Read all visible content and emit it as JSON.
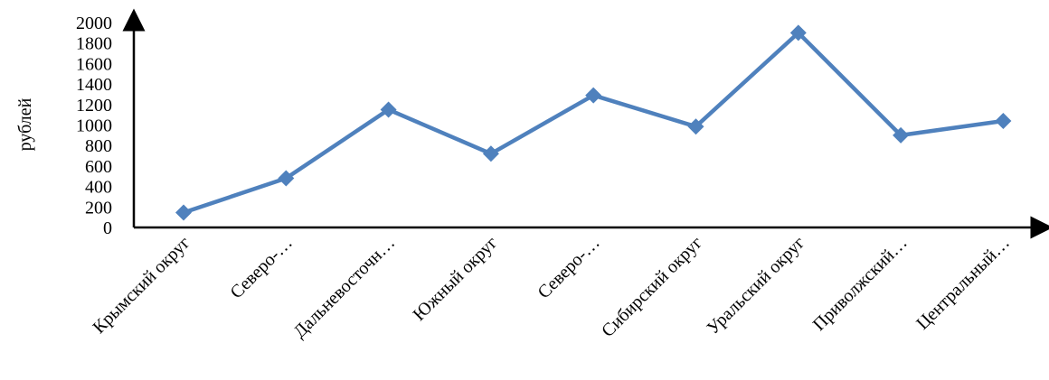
{
  "chart_data": {
    "type": "line",
    "ylabel": "рублей",
    "xlabel": "",
    "ylim": [
      0,
      2000
    ],
    "yticks": [
      0,
      200,
      400,
      600,
      800,
      1000,
      1200,
      1400,
      1600,
      1800,
      2000
    ],
    "grid": false,
    "categories": [
      "Крымский округ",
      "Северо-…",
      "Дальневосточн…",
      "Южный округ",
      "Северо-…",
      "Сибирский округ",
      "Уральский округ",
      "Приволжский…",
      "Центральный…"
    ],
    "series": [
      {
        "values": [
          145,
          480,
          1150,
          720,
          1290,
          985,
          1900,
          900,
          1040
        ],
        "color": "#4F81BD",
        "marker": "diamond"
      }
    ]
  }
}
